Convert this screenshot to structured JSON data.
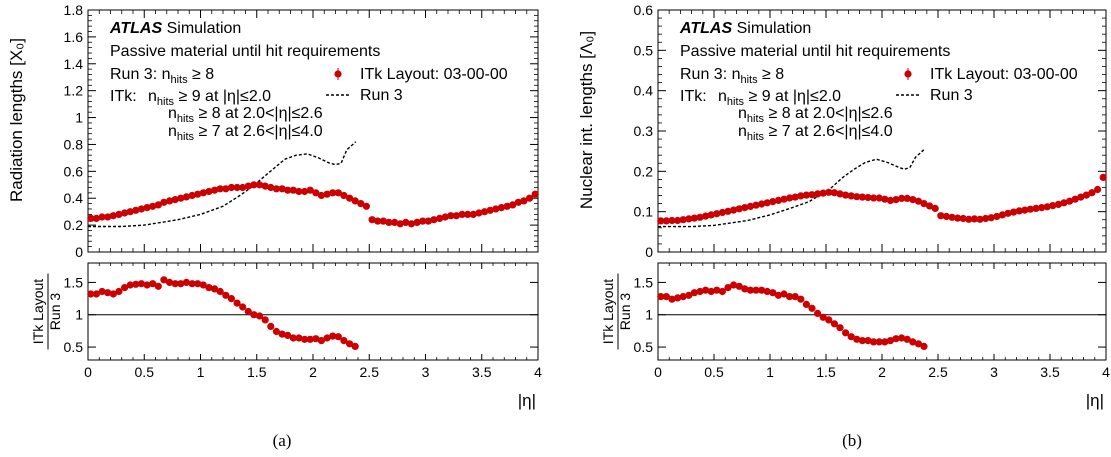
{
  "panels": [
    {
      "label": "(a)",
      "ylabel_main": "Radiation lengths [X₀]",
      "ylabel_ratio_top": "ITk Layout",
      "ylabel_ratio_bottom": "Run 3",
      "xlabel": "|η|"
    },
    {
      "label": "(b)",
      "ylabel_main": "Nuclear int. lengths [Λ₀]",
      "ylabel_ratio_top": "ITk Layout",
      "ylabel_ratio_bottom": "Run 3",
      "xlabel": "|η|"
    }
  ],
  "annotations": {
    "atlas": "ATLAS",
    "simulation": "Simulation",
    "line1": "Passive material until hit requirements",
    "run3_req": "Run 3: n",
    "run3_req_sub": "hits",
    "run3_req_cut": " ≥ 8",
    "itk_prefix": "ITk:",
    "itk_rows": [
      {
        "n": "n",
        "sub": "hits",
        "cut": " ≥ 9 at |η|≤2.0"
      },
      {
        "n": "n",
        "sub": "hits",
        "cut": " ≥ 8 at 2.0<|η|≤2.6"
      },
      {
        "n": "n",
        "sub": "hits",
        "cut": " ≥ 7 at 2.6<|η|≤4.0"
      }
    ]
  },
  "legend": {
    "itk": "ITk Layout: 03-00-00",
    "run3": "Run 3"
  },
  "colors": {
    "itk_marker": "#cc0000",
    "run3_line": "#000000",
    "atlas_red": "#cc0000"
  },
  "chart_data": [
    {
      "type": "scatter",
      "xlim": [
        0,
        4
      ],
      "ylim": [
        0,
        1.8
      ],
      "yticks": [
        0,
        0.2,
        0.4,
        0.6,
        0.8,
        1,
        1.2,
        1.4,
        1.6,
        1.8
      ],
      "xticks": [
        0,
        0.5,
        1,
        1.5,
        2,
        2.5,
        3,
        3.5,
        4
      ],
      "series": [
        {
          "name": "ITk Layout: 03-00-00",
          "x": [
            0.025,
            0.075,
            0.125,
            0.175,
            0.225,
            0.275,
            0.325,
            0.375,
            0.425,
            0.475,
            0.525,
            0.575,
            0.625,
            0.675,
            0.725,
            0.775,
            0.825,
            0.875,
            0.925,
            0.975,
            1.025,
            1.075,
            1.125,
            1.175,
            1.225,
            1.275,
            1.325,
            1.375,
            1.425,
            1.475,
            1.525,
            1.575,
            1.625,
            1.675,
            1.725,
            1.775,
            1.825,
            1.875,
            1.925,
            1.975,
            2.025,
            2.075,
            2.125,
            2.175,
            2.225,
            2.275,
            2.325,
            2.375,
            2.425,
            2.475,
            2.525,
            2.575,
            2.625,
            2.675,
            2.725,
            2.775,
            2.825,
            2.875,
            2.925,
            2.975,
            3.025,
            3.075,
            3.125,
            3.175,
            3.225,
            3.275,
            3.325,
            3.375,
            3.425,
            3.475,
            3.525,
            3.575,
            3.625,
            3.675,
            3.725,
            3.775,
            3.825,
            3.875,
            3.925,
            3.975
          ],
          "values": [
            0.25,
            0.25,
            0.26,
            0.26,
            0.27,
            0.28,
            0.29,
            0.3,
            0.31,
            0.32,
            0.33,
            0.34,
            0.35,
            0.37,
            0.38,
            0.39,
            0.4,
            0.41,
            0.42,
            0.43,
            0.44,
            0.45,
            0.46,
            0.47,
            0.47,
            0.48,
            0.48,
            0.48,
            0.49,
            0.5,
            0.5,
            0.49,
            0.48,
            0.47,
            0.47,
            0.46,
            0.46,
            0.45,
            0.45,
            0.46,
            0.44,
            0.42,
            0.43,
            0.44,
            0.44,
            0.42,
            0.4,
            0.38,
            0.36,
            0.34,
            0.24,
            0.23,
            0.23,
            0.22,
            0.22,
            0.21,
            0.22,
            0.21,
            0.22,
            0.23,
            0.23,
            0.24,
            0.25,
            0.26,
            0.27,
            0.27,
            0.28,
            0.28,
            0.28,
            0.29,
            0.3,
            0.31,
            0.32,
            0.33,
            0.34,
            0.35,
            0.37,
            0.38,
            0.4,
            0.43
          ]
        },
        {
          "name": "Run 3",
          "x": [
            0,
            0.3,
            0.5,
            0.8,
            1.0,
            1.2,
            1.35,
            1.45,
            1.55,
            1.65,
            1.75,
            1.85,
            1.95,
            2.05,
            2.15,
            2.2,
            2.25,
            2.3,
            2.38
          ],
          "values": [
            0.19,
            0.19,
            0.2,
            0.24,
            0.28,
            0.34,
            0.42,
            0.48,
            0.55,
            0.62,
            0.69,
            0.72,
            0.73,
            0.7,
            0.66,
            0.65,
            0.66,
            0.76,
            0.82
          ]
        }
      ],
      "ratio": {
        "ylim": [
          0.3,
          1.8
        ],
        "yticks": [
          0.5,
          1,
          1.5
        ],
        "reference": 1,
        "x": [
          0.025,
          0.075,
          0.125,
          0.175,
          0.225,
          0.275,
          0.325,
          0.375,
          0.425,
          0.475,
          0.525,
          0.575,
          0.625,
          0.675,
          0.725,
          0.775,
          0.825,
          0.875,
          0.925,
          0.975,
          1.025,
          1.075,
          1.125,
          1.175,
          1.225,
          1.275,
          1.325,
          1.375,
          1.425,
          1.475,
          1.525,
          1.575,
          1.625,
          1.675,
          1.725,
          1.775,
          1.825,
          1.875,
          1.925,
          1.975,
          2.025,
          2.075,
          2.125,
          2.175,
          2.225,
          2.275,
          2.325,
          2.375
        ],
        "values": [
          1.32,
          1.32,
          1.36,
          1.34,
          1.32,
          1.36,
          1.42,
          1.46,
          1.47,
          1.48,
          1.46,
          1.48,
          1.44,
          1.54,
          1.5,
          1.48,
          1.48,
          1.5,
          1.48,
          1.48,
          1.46,
          1.42,
          1.4,
          1.36,
          1.3,
          1.25,
          1.18,
          1.12,
          1.05,
          1.0,
          0.98,
          0.92,
          0.82,
          0.74,
          0.7,
          0.68,
          0.64,
          0.64,
          0.62,
          0.62,
          0.63,
          0.6,
          0.64,
          0.67,
          0.66,
          0.6,
          0.55,
          0.51
        ]
      }
    },
    {
      "type": "scatter",
      "xlim": [
        0,
        4
      ],
      "ylim": [
        0,
        0.6
      ],
      "yticks": [
        0,
        0.1,
        0.2,
        0.3,
        0.4,
        0.5,
        0.6
      ],
      "xticks": [
        0,
        0.5,
        1,
        1.5,
        2,
        2.5,
        3,
        3.5,
        4
      ],
      "series": [
        {
          "name": "ITk Layout: 03-00-00",
          "x": [
            0.025,
            0.075,
            0.125,
            0.175,
            0.225,
            0.275,
            0.325,
            0.375,
            0.425,
            0.475,
            0.525,
            0.575,
            0.625,
            0.675,
            0.725,
            0.775,
            0.825,
            0.875,
            0.925,
            0.975,
            1.025,
            1.075,
            1.125,
            1.175,
            1.225,
            1.275,
            1.325,
            1.375,
            1.425,
            1.475,
            1.525,
            1.575,
            1.625,
            1.675,
            1.725,
            1.775,
            1.825,
            1.875,
            1.925,
            1.975,
            2.025,
            2.075,
            2.125,
            2.175,
            2.225,
            2.275,
            2.325,
            2.375,
            2.425,
            2.475,
            2.525,
            2.575,
            2.625,
            2.675,
            2.725,
            2.775,
            2.825,
            2.875,
            2.925,
            2.975,
            3.025,
            3.075,
            3.125,
            3.175,
            3.225,
            3.275,
            3.325,
            3.375,
            3.425,
            3.475,
            3.525,
            3.575,
            3.625,
            3.675,
            3.725,
            3.775,
            3.825,
            3.875,
            3.925,
            3.975
          ],
          "values": [
            0.077,
            0.077,
            0.078,
            0.078,
            0.08,
            0.082,
            0.084,
            0.086,
            0.089,
            0.092,
            0.095,
            0.098,
            0.101,
            0.104,
            0.107,
            0.11,
            0.113,
            0.116,
            0.119,
            0.122,
            0.125,
            0.128,
            0.131,
            0.134,
            0.136,
            0.139,
            0.141,
            0.142,
            0.144,
            0.146,
            0.148,
            0.147,
            0.144,
            0.141,
            0.139,
            0.137,
            0.136,
            0.135,
            0.134,
            0.134,
            0.131,
            0.128,
            0.13,
            0.133,
            0.133,
            0.13,
            0.126,
            0.12,
            0.114,
            0.108,
            0.09,
            0.088,
            0.086,
            0.084,
            0.083,
            0.081,
            0.082,
            0.081,
            0.083,
            0.085,
            0.088,
            0.092,
            0.096,
            0.099,
            0.102,
            0.104,
            0.106,
            0.108,
            0.11,
            0.112,
            0.115,
            0.118,
            0.122,
            0.126,
            0.131,
            0.136,
            0.141,
            0.147,
            0.155,
            0.185
          ]
        },
        {
          "name": "Run 3",
          "x": [
            0,
            0.3,
            0.5,
            0.8,
            1.0,
            1.2,
            1.35,
            1.45,
            1.55,
            1.65,
            1.75,
            1.85,
            1.95,
            2.05,
            2.15,
            2.2,
            2.25,
            2.3,
            2.38
          ],
          "values": [
            0.063,
            0.063,
            0.066,
            0.078,
            0.092,
            0.11,
            0.125,
            0.142,
            0.16,
            0.185,
            0.205,
            0.222,
            0.23,
            0.222,
            0.21,
            0.205,
            0.21,
            0.235,
            0.255
          ]
        }
      ],
      "ratio": {
        "ylim": [
          0.3,
          1.8
        ],
        "yticks": [
          0.5,
          1,
          1.5
        ],
        "reference": 1,
        "x": [
          0.025,
          0.075,
          0.125,
          0.175,
          0.225,
          0.275,
          0.325,
          0.375,
          0.425,
          0.475,
          0.525,
          0.575,
          0.625,
          0.675,
          0.725,
          0.775,
          0.825,
          0.875,
          0.925,
          0.975,
          1.025,
          1.075,
          1.125,
          1.175,
          1.225,
          1.275,
          1.325,
          1.375,
          1.425,
          1.475,
          1.525,
          1.575,
          1.625,
          1.675,
          1.725,
          1.775,
          1.825,
          1.875,
          1.925,
          1.975,
          2.025,
          2.075,
          2.125,
          2.175,
          2.225,
          2.275,
          2.325,
          2.375
        ],
        "values": [
          1.28,
          1.28,
          1.24,
          1.26,
          1.28,
          1.3,
          1.34,
          1.36,
          1.38,
          1.36,
          1.38,
          1.36,
          1.42,
          1.46,
          1.44,
          1.4,
          1.38,
          1.38,
          1.38,
          1.36,
          1.34,
          1.3,
          1.32,
          1.28,
          1.28,
          1.24,
          1.16,
          1.1,
          1.02,
          0.96,
          0.92,
          0.86,
          0.8,
          0.72,
          0.66,
          0.62,
          0.6,
          0.6,
          0.58,
          0.58,
          0.58,
          0.6,
          0.63,
          0.64,
          0.62,
          0.58,
          0.55,
          0.51
        ]
      }
    }
  ]
}
